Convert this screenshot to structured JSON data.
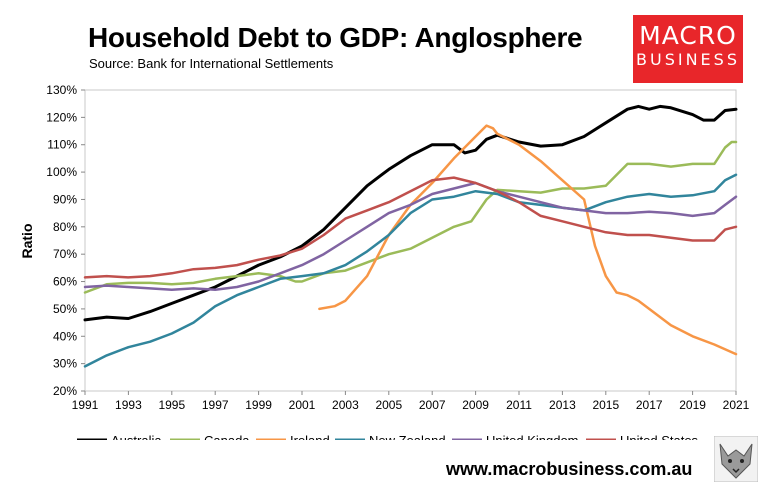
{
  "header": {
    "title": "Household Debt to GDP: Anglosphere",
    "source": "Source: Bank for International Settlements"
  },
  "logo": {
    "line1": "MACRO",
    "line2": "BUSINESS",
    "color": "#e8262a"
  },
  "footer": {
    "url": "www.macrobusiness.com.au"
  },
  "chart_data": {
    "type": "line",
    "title": "Household Debt to GDP: Anglosphere",
    "xlabel": "",
    "ylabel": "Ratio",
    "xlim": [
      1991,
      2021
    ],
    "ylim": [
      20,
      130
    ],
    "y_ticks": [
      20,
      30,
      40,
      50,
      60,
      70,
      80,
      90,
      100,
      110,
      120,
      130
    ],
    "y_tick_labels": [
      "20%",
      "30%",
      "40%",
      "50%",
      "60%",
      "70%",
      "80%",
      "90%",
      "100%",
      "110%",
      "120%",
      "130%"
    ],
    "x_ticks": [
      1991,
      1993,
      1995,
      1997,
      1999,
      2001,
      2003,
      2005,
      2007,
      2009,
      2011,
      2013,
      2015,
      2017,
      2019,
      2021
    ],
    "x_tick_labels": [
      "1991",
      "1993",
      "1995",
      "1997",
      "1999",
      "2001",
      "2003",
      "2005",
      "2007",
      "2009",
      "2011",
      "2013",
      "2015",
      "2017",
      "2019",
      "2021"
    ],
    "grid": false,
    "legend_position": "bottom",
    "series": [
      {
        "name": "Australia",
        "color": "#000000",
        "width": 3,
        "points": [
          [
            1991,
            46
          ],
          [
            1992,
            47
          ],
          [
            1993,
            46.5
          ],
          [
            1994,
            49
          ],
          [
            1995,
            52
          ],
          [
            1996,
            55
          ],
          [
            1997,
            58
          ],
          [
            1998,
            62
          ],
          [
            1999,
            66
          ],
          [
            2000,
            69
          ],
          [
            2001,
            73
          ],
          [
            2002,
            79
          ],
          [
            2003,
            87
          ],
          [
            2004,
            95
          ],
          [
            2005,
            101
          ],
          [
            2006,
            106
          ],
          [
            2007,
            110
          ],
          [
            2008,
            110
          ],
          [
            2008.5,
            107
          ],
          [
            2009,
            108
          ],
          [
            2009.5,
            112
          ],
          [
            2010,
            113.5
          ],
          [
            2011,
            111
          ],
          [
            2012,
            109.5
          ],
          [
            2013,
            110
          ],
          [
            2014,
            113
          ],
          [
            2015,
            118
          ],
          [
            2016,
            123
          ],
          [
            2016.5,
            124
          ],
          [
            2017,
            123
          ],
          [
            2017.5,
            124
          ],
          [
            2018,
            123.5
          ],
          [
            2019,
            121
          ],
          [
            2019.5,
            119
          ],
          [
            2020,
            119
          ],
          [
            2020.5,
            122.5
          ],
          [
            2021,
            123
          ]
        ]
      },
      {
        "name": "Canada",
        "color": "#9bbb59",
        "width": 2.5,
        "points": [
          [
            1991,
            56
          ],
          [
            1992,
            59
          ],
          [
            1993,
            59.5
          ],
          [
            1994,
            59.5
          ],
          [
            1995,
            59
          ],
          [
            1996,
            59.5
          ],
          [
            1997,
            61
          ],
          [
            1998,
            62
          ],
          [
            1999,
            63
          ],
          [
            2000,
            62
          ],
          [
            2000.7,
            60
          ],
          [
            2001,
            60
          ],
          [
            2002,
            63
          ],
          [
            2003,
            64
          ],
          [
            2004,
            67
          ],
          [
            2005,
            70
          ],
          [
            2006,
            72
          ],
          [
            2007,
            76
          ],
          [
            2008,
            80
          ],
          [
            2008.8,
            82
          ],
          [
            2009.5,
            90
          ],
          [
            2010,
            93.5
          ],
          [
            2011,
            93
          ],
          [
            2012,
            92.5
          ],
          [
            2013,
            94
          ],
          [
            2014,
            94
          ],
          [
            2015,
            95
          ],
          [
            2016,
            103
          ],
          [
            2017,
            103
          ],
          [
            2018,
            102
          ],
          [
            2019,
            103
          ],
          [
            2020,
            103
          ],
          [
            2020.5,
            109
          ],
          [
            2020.8,
            111
          ],
          [
            2021,
            111
          ]
        ]
      },
      {
        "name": "Ireland",
        "color": "#f79646",
        "width": 2.5,
        "points": [
          [
            2001.8,
            50
          ],
          [
            2002.5,
            51
          ],
          [
            2003,
            53
          ],
          [
            2004,
            62
          ],
          [
            2005,
            77
          ],
          [
            2006,
            88
          ],
          [
            2007,
            96
          ],
          [
            2008,
            105
          ],
          [
            2009,
            113
          ],
          [
            2009.5,
            117
          ],
          [
            2009.8,
            116
          ],
          [
            2010,
            114
          ],
          [
            2011,
            110
          ],
          [
            2012,
            104
          ],
          [
            2013,
            97
          ],
          [
            2014,
            90
          ],
          [
            2014.5,
            73
          ],
          [
            2015,
            62
          ],
          [
            2015.5,
            56
          ],
          [
            2016,
            55
          ],
          [
            2016.5,
            53
          ],
          [
            2017,
            50
          ],
          [
            2018,
            44
          ],
          [
            2019,
            40
          ],
          [
            2020,
            37
          ],
          [
            2021,
            33.5
          ]
        ]
      },
      {
        "name": "New Zealand",
        "color": "#31859c",
        "width": 2.5,
        "points": [
          [
            1991,
            29
          ],
          [
            1992,
            33
          ],
          [
            1993,
            36
          ],
          [
            1994,
            38
          ],
          [
            1995,
            41
          ],
          [
            1996,
            45
          ],
          [
            1997,
            51
          ],
          [
            1998,
            55
          ],
          [
            1999,
            58
          ],
          [
            2000,
            61
          ],
          [
            2001,
            62
          ],
          [
            2002,
            63
          ],
          [
            2003,
            66
          ],
          [
            2004,
            71
          ],
          [
            2005,
            77
          ],
          [
            2006,
            85
          ],
          [
            2007,
            90
          ],
          [
            2008,
            91
          ],
          [
            2009,
            93
          ],
          [
            2010,
            92
          ],
          [
            2011,
            89
          ],
          [
            2012,
            88
          ],
          [
            2013,
            87
          ],
          [
            2014,
            86
          ],
          [
            2015,
            89
          ],
          [
            2016,
            91
          ],
          [
            2017,
            92
          ],
          [
            2018,
            91
          ],
          [
            2019,
            91.5
          ],
          [
            2020,
            93
          ],
          [
            2020.5,
            97
          ],
          [
            2021,
            99
          ]
        ]
      },
      {
        "name": "United Kingdom",
        "color": "#8064a2",
        "width": 2.5,
        "points": [
          [
            1991,
            58
          ],
          [
            1992,
            58.5
          ],
          [
            1993,
            58
          ],
          [
            1994,
            57.5
          ],
          [
            1995,
            57
          ],
          [
            1996,
            57.5
          ],
          [
            1997,
            57
          ],
          [
            1998,
            58
          ],
          [
            1999,
            60
          ],
          [
            2000,
            63
          ],
          [
            2001,
            66
          ],
          [
            2002,
            70
          ],
          [
            2003,
            75
          ],
          [
            2004,
            80
          ],
          [
            2005,
            85
          ],
          [
            2006,
            88
          ],
          [
            2007,
            92
          ],
          [
            2008,
            94
          ],
          [
            2009,
            96
          ],
          [
            2010,
            93
          ],
          [
            2011,
            91
          ],
          [
            2012,
            89
          ],
          [
            2013,
            87
          ],
          [
            2014,
            86
          ],
          [
            2015,
            85
          ],
          [
            2016,
            85
          ],
          [
            2017,
            85.5
          ],
          [
            2018,
            85
          ],
          [
            2019,
            84
          ],
          [
            2020,
            85
          ],
          [
            2020.5,
            88
          ],
          [
            2021,
            91
          ]
        ]
      },
      {
        "name": "United States",
        "color": "#c0504d",
        "width": 2.5,
        "points": [
          [
            1991,
            61.5
          ],
          [
            1992,
            62
          ],
          [
            1993,
            61.5
          ],
          [
            1994,
            62
          ],
          [
            1995,
            63
          ],
          [
            1996,
            64.5
          ],
          [
            1997,
            65
          ],
          [
            1998,
            66
          ],
          [
            1999,
            68
          ],
          [
            2000,
            69.5
          ],
          [
            2001,
            72
          ],
          [
            2002,
            77
          ],
          [
            2003,
            83
          ],
          [
            2004,
            86
          ],
          [
            2005,
            89
          ],
          [
            2006,
            93
          ],
          [
            2007,
            97
          ],
          [
            2008,
            98
          ],
          [
            2009,
            96
          ],
          [
            2010,
            93
          ],
          [
            2011,
            89
          ],
          [
            2012,
            84
          ],
          [
            2013,
            82
          ],
          [
            2014,
            80
          ],
          [
            2015,
            78
          ],
          [
            2016,
            77
          ],
          [
            2017,
            77
          ],
          [
            2018,
            76
          ],
          [
            2019,
            75
          ],
          [
            2020,
            75
          ],
          [
            2020.5,
            79
          ],
          [
            2021,
            80
          ]
        ]
      }
    ]
  }
}
